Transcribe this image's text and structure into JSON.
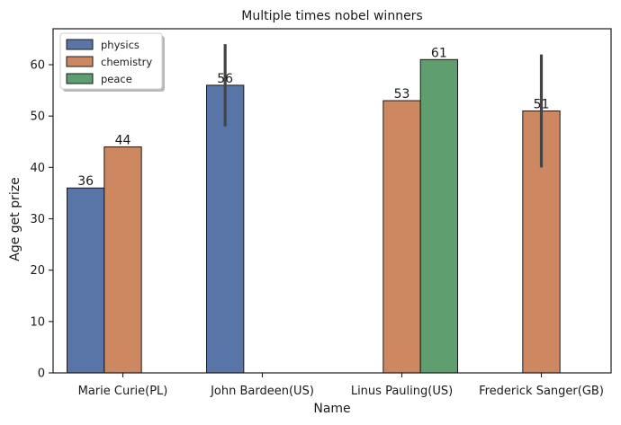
{
  "chart_data": {
    "type": "bar",
    "title": "Multiple times nobel winners",
    "xlabel": "Name",
    "ylabel": "Age get prize",
    "categories": [
      "Marie Curie(PL)",
      "John Bardeen(US)",
      "Linus Pauling(US)",
      "Frederick Sanger(GB)"
    ],
    "ylim": [
      0,
      67
    ],
    "yticks": [
      0,
      10,
      20,
      30,
      40,
      50,
      60
    ],
    "legend_position": "top-left",
    "series": [
      {
        "name": "physics",
        "color": "#5975a8",
        "values": [
          36,
          56,
          null,
          null
        ],
        "error_low": [
          null,
          48,
          null,
          null
        ],
        "error_high": [
          null,
          64,
          null,
          null
        ]
      },
      {
        "name": "chemistry",
        "color": "#cd8862",
        "values": [
          44,
          null,
          53,
          51
        ],
        "error_low": [
          null,
          null,
          null,
          40
        ],
        "error_high": [
          null,
          null,
          null,
          62
        ]
      },
      {
        "name": "peace",
        "color": "#5f9e6e",
        "values": [
          null,
          null,
          61,
          null
        ],
        "error_low": [
          null,
          null,
          null,
          null
        ],
        "error_high": [
          null,
          null,
          null,
          null
        ]
      }
    ],
    "bar_labels": [
      "36",
      "44",
      "56",
      "53",
      "61",
      "51"
    ]
  }
}
